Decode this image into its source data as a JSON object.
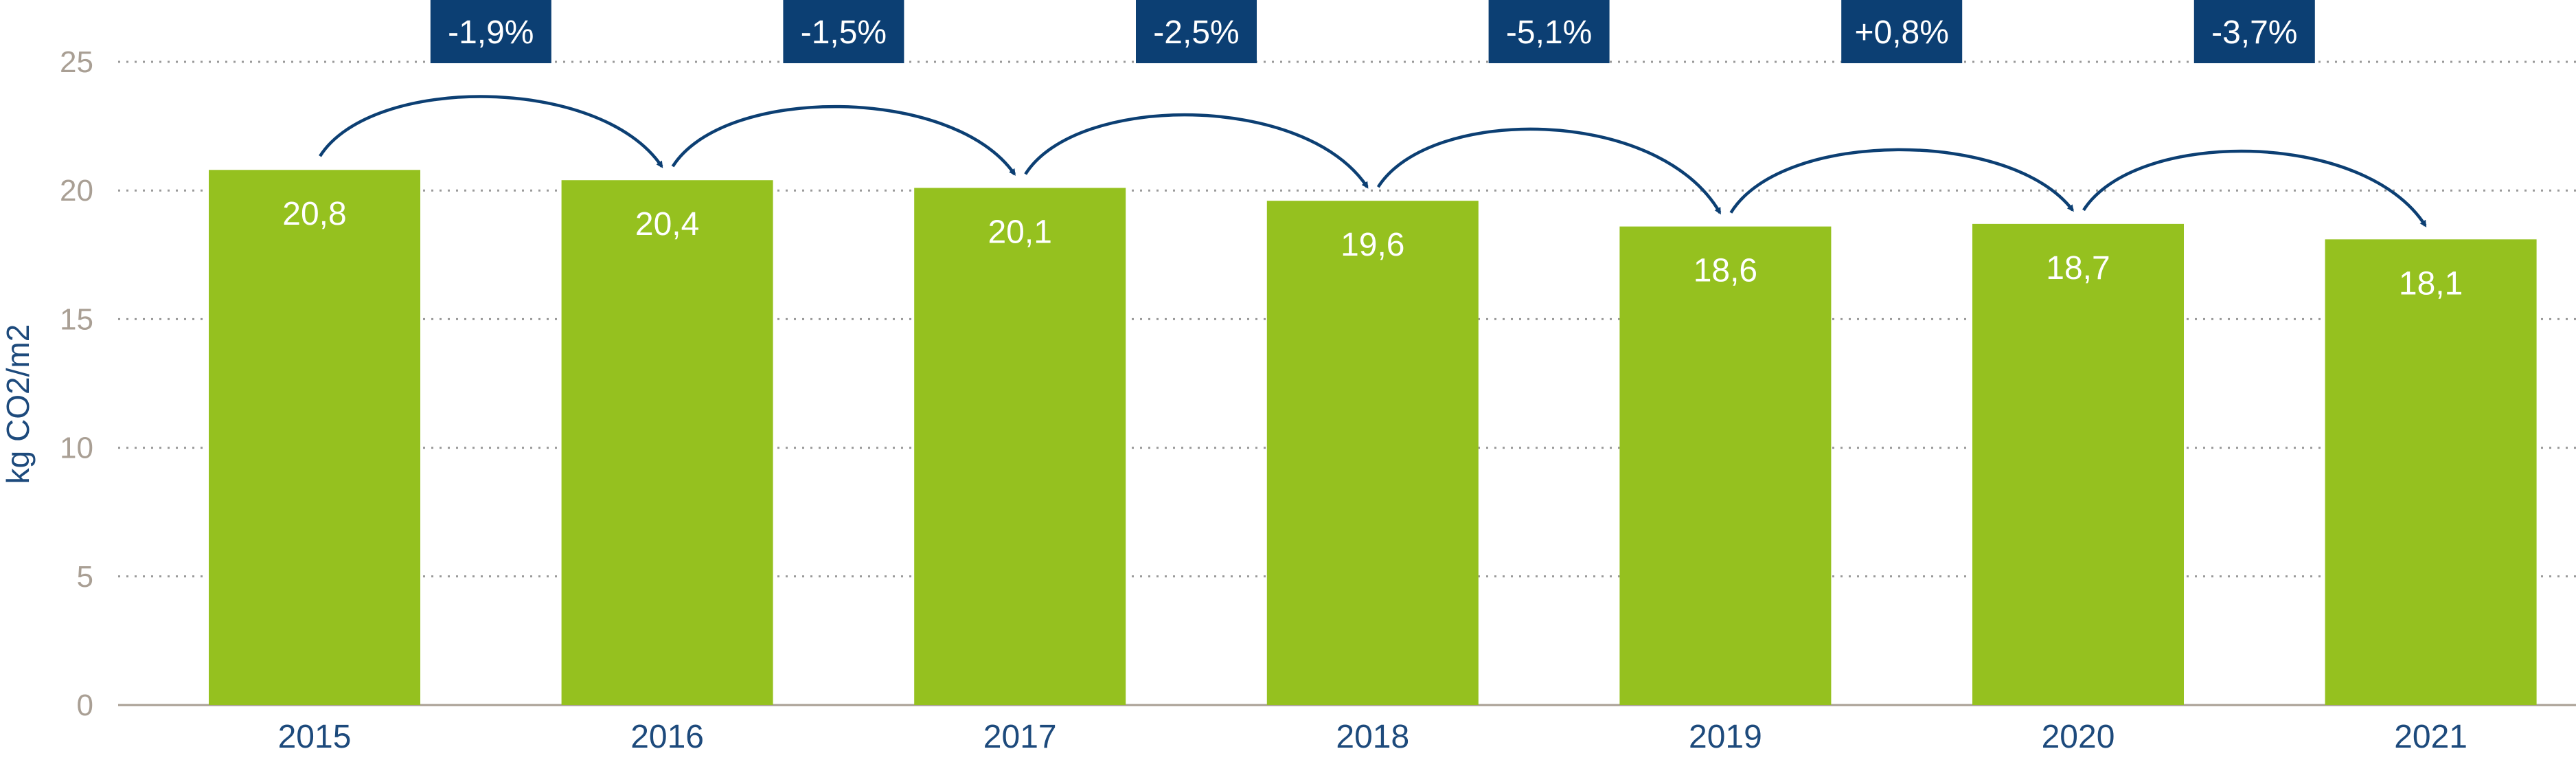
{
  "chart_data": {
    "type": "bar",
    "title": "",
    "xlabel": "",
    "ylabel": "kg CO2/m2",
    "categories": [
      "2015",
      "2016",
      "2017",
      "2018",
      "2019",
      "2020",
      "2021"
    ],
    "values": [
      20.8,
      20.4,
      20.1,
      19.6,
      18.6,
      18.7,
      18.1
    ],
    "value_labels": [
      "20,8",
      "20,4",
      "20,1",
      "19,6",
      "18,6",
      "18,7",
      "18,1"
    ],
    "ylim": [
      0,
      25
    ],
    "yticks": [
      0,
      5,
      10,
      15,
      20,
      25
    ],
    "grid": true,
    "bar_color": "#95c11f",
    "changes": [
      {
        "from": "2015",
        "to": "2016",
        "label": "-1,9%"
      },
      {
        "from": "2016",
        "to": "2017",
        "label": "-1,5%"
      },
      {
        "from": "2017",
        "to": "2018",
        "label": "-2,5%"
      },
      {
        "from": "2018",
        "to": "2019",
        "label": "-5,1%"
      },
      {
        "from": "2019",
        "to": "2020",
        "label": "+0,8%"
      },
      {
        "from": "2020",
        "to": "2021",
        "label": "-3,7%"
      }
    ],
    "change_box_color": "#0c3f73",
    "arrow_color": "#0c3f73"
  }
}
